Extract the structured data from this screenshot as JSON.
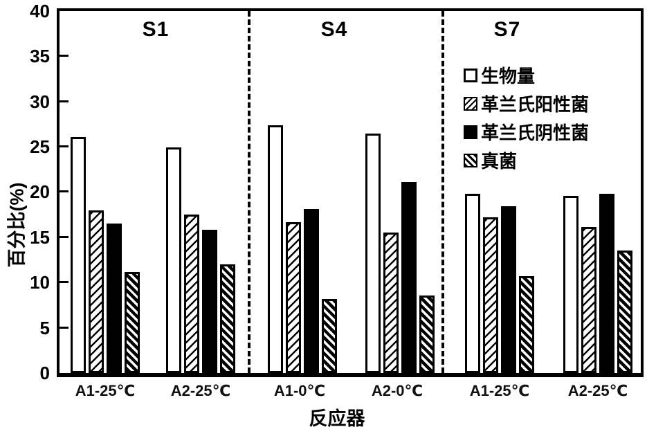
{
  "chart_data": {
    "type": "bar",
    "title": "",
    "xlabel": "反应器",
    "ylabel": "百分比(%)",
    "ylim": [
      0,
      40
    ],
    "ytick_step": 5,
    "yticks": [
      0,
      5,
      10,
      15,
      20,
      25,
      30,
      35,
      40
    ],
    "grid": false,
    "legend_position": "upper-right",
    "sections": [
      "S1",
      "S4",
      "S7"
    ],
    "categories": [
      "A1-25℃",
      "A2-25℃",
      "A1-0℃",
      "A2-0℃",
      "A1-25℃",
      "A2-25℃"
    ],
    "series": [
      {
        "name": "生物量",
        "style": "open",
        "values": [
          26.1,
          24.9,
          27.4,
          26.5,
          19.8,
          19.6
        ]
      },
      {
        "name": "革兰氏阳性菌",
        "style": "hatch-forward",
        "values": [
          18.0,
          17.5,
          16.7,
          15.5,
          17.2,
          16.1
        ]
      },
      {
        "name": "革兰氏阴性菌",
        "style": "solid",
        "values": [
          16.5,
          15.8,
          18.1,
          21.1,
          18.4,
          19.8
        ]
      },
      {
        "name": "真菌",
        "style": "hatch-back",
        "values": [
          11.2,
          12.0,
          8.2,
          8.6,
          10.7,
          13.5
        ]
      }
    ],
    "colors": {
      "foreground": "#000000",
      "background": "#ffffff"
    }
  }
}
